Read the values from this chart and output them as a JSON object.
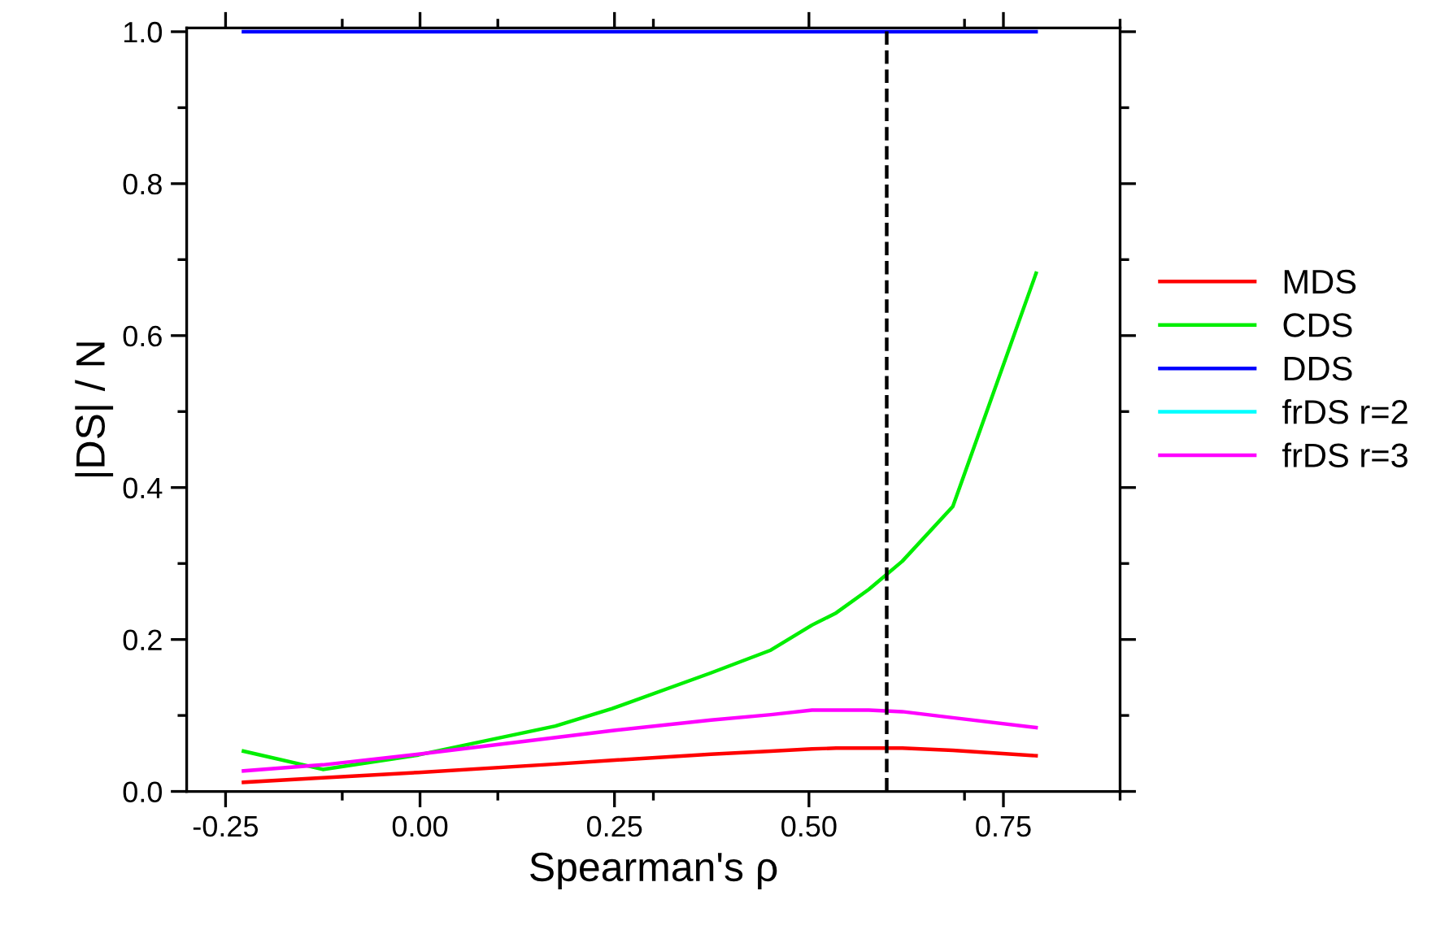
{
  "chart_data": {
    "type": "line",
    "xlabel": "Spearman's ρ",
    "ylabel": "|DS| / N",
    "xlim": [
      -0.3,
      0.9
    ],
    "xticks": [
      {
        "value": -0.25,
        "label": "-0.25"
      },
      {
        "value": 0,
        "label": "0.00"
      },
      {
        "value": 0.25,
        "label": "0.25"
      },
      {
        "value": 0.5,
        "label": "0.50"
      },
      {
        "value": 0.75,
        "label": "0.75"
      }
    ],
    "ylim": [
      0,
      1.005
    ],
    "yticks": [
      {
        "value": 0,
        "label": "0.0"
      },
      {
        "value": 0.2,
        "label": "0.2"
      },
      {
        "value": 0.4,
        "label": "0.4"
      },
      {
        "value": 0.6,
        "label": "0.6"
      },
      {
        "value": 0.8,
        "label": "0.8"
      },
      {
        "value": 1.0,
        "label": "1.0"
      }
    ],
    "grid": false,
    "legend": "right",
    "marker": "none",
    "line_style": "solid",
    "x": [
      -0.227,
      -0.125,
      -0.002,
      0.174,
      0.247,
      0.374,
      0.451,
      0.504,
      0.535,
      0.577,
      0.62,
      0.685,
      0.792
    ],
    "series": [
      {
        "name": "MDS",
        "color": "#ff0000",
        "values": [
          0.012,
          0.018,
          0.025,
          0.036,
          0.041,
          0.049,
          0.053,
          0.056,
          0.057,
          0.057,
          0.057,
          0.054,
          0.047
        ]
      },
      {
        "name": "CDS",
        "color": "#00ee00",
        "values": [
          0.053,
          0.029,
          0.048,
          0.086,
          0.109,
          0.156,
          0.186,
          0.219,
          0.235,
          0.266,
          0.303,
          0.375,
          0.682
        ]
      },
      {
        "name": "DDS",
        "color": "#0000ff",
        "values": [
          1.0,
          1.0,
          1.0,
          1.0,
          1.0,
          1.0,
          1.0,
          1.0,
          1.0,
          1.0,
          1.0,
          1.0,
          1.0
        ]
      },
      {
        "name": "frDS r=2",
        "color": "#00ffff",
        "values": [
          null,
          null,
          null,
          null,
          null,
          null,
          null,
          null,
          null,
          null,
          null,
          null,
          null
        ]
      },
      {
        "name": "frDS r=3",
        "color": "#ff00ff",
        "values": [
          0.027,
          0.035,
          0.049,
          0.071,
          0.08,
          0.094,
          0.101,
          0.107,
          0.107,
          0.107,
          0.105,
          0.097,
          0.084
        ]
      }
    ],
    "ref_lines": [
      {
        "axis": "x",
        "value": 0.6,
        "color": "#000000",
        "line_style": "dashed"
      }
    ]
  }
}
